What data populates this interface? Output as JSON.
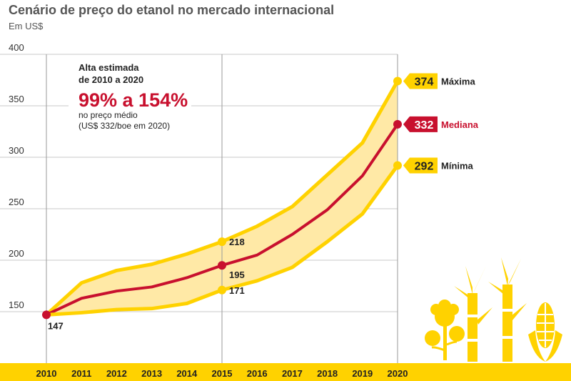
{
  "chart_data": {
    "type": "area",
    "title": "Cenário de preço do etanol no mercado internacional",
    "subtitle": "Em US$",
    "xlabel": "",
    "ylabel": "",
    "ylim": [
      100,
      400
    ],
    "yticks": [
      150,
      200,
      250,
      300,
      350,
      400
    ],
    "grid": true,
    "x": [
      2010,
      2011,
      2012,
      2013,
      2014,
      2015,
      2016,
      2017,
      2018,
      2019,
      2020
    ],
    "x_labels": [
      "2010",
      "2011",
      "2012",
      "2013",
      "2014",
      "2015",
      "2016",
      "2017",
      "2018",
      "2019",
      "2020"
    ],
    "series": [
      {
        "name": "Máxima",
        "values": [
          147,
          178,
          190,
          196,
          206,
          218,
          233,
          252,
          283,
          314,
          374
        ],
        "color": "#FFD200"
      },
      {
        "name": "Mediana",
        "values": [
          147,
          163,
          170,
          174,
          183,
          195,
          205,
          225,
          249,
          282,
          332
        ],
        "color": "#C8102E"
      },
      {
        "name": "Mínima",
        "values": [
          147,
          149,
          152,
          153,
          158,
          171,
          180,
          193,
          218,
          245,
          292
        ],
        "color": "#FFD200"
      }
    ],
    "point_labels": [
      {
        "series": "Mínima",
        "x": 2010,
        "value": 147,
        "text": "147"
      },
      {
        "series": "Máxima",
        "x": 2015,
        "value": 218,
        "text": "218"
      },
      {
        "series": "Mediana",
        "x": 2015,
        "value": 195,
        "text": "195"
      },
      {
        "series": "Mínima",
        "x": 2015,
        "value": 171,
        "text": "171"
      }
    ],
    "end_labels": [
      {
        "series": "Máxima",
        "value": 374,
        "text": "374",
        "name": "Máxima"
      },
      {
        "series": "Mediana",
        "value": 332,
        "text": "332",
        "name": "Mediana"
      },
      {
        "series": "Mínima",
        "value": 292,
        "text": "292",
        "name": "Mínima"
      }
    ],
    "annotation": {
      "line1": "Alta estimada",
      "line2": "de 2010 a 2020",
      "highlight": "99% a 154%",
      "line3": "no preço médio",
      "line4": "(US$ 332/boe em 2020)"
    },
    "band_color": "#FFE9A6",
    "decoration_icon": "crops-icon"
  }
}
